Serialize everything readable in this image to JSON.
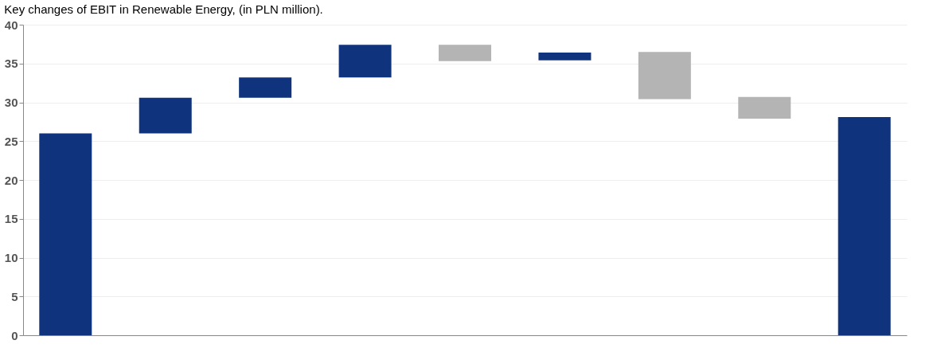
{
  "chart_data": {
    "type": "bar",
    "title": "Key changes of EBIT in Renewable Energy, (in PLN million).",
    "categories": [
      null,
      null,
      null,
      null,
      null,
      null,
      null,
      null,
      null
    ],
    "values": [
      26,
      4.6,
      2.6,
      4.2,
      -2.1,
      1.0,
      -6.1,
      -2.8,
      28.1
    ],
    "base": [
      0,
      26,
      30.6,
      33.2,
      37.4,
      35.4,
      36.5,
      30.7,
      0
    ],
    "colors": [
      "#0f347d",
      "#0f347d",
      "#0f347d",
      "#0f347d",
      "#b4b4b4",
      "#0f347d",
      "#b4b4b4",
      "#b4b4b4",
      "#0f347d"
    ],
    "ylim": [
      0,
      40
    ],
    "yticks": [
      0,
      5,
      10,
      15,
      20,
      25,
      30,
      35,
      40
    ],
    "grid": "y"
  }
}
